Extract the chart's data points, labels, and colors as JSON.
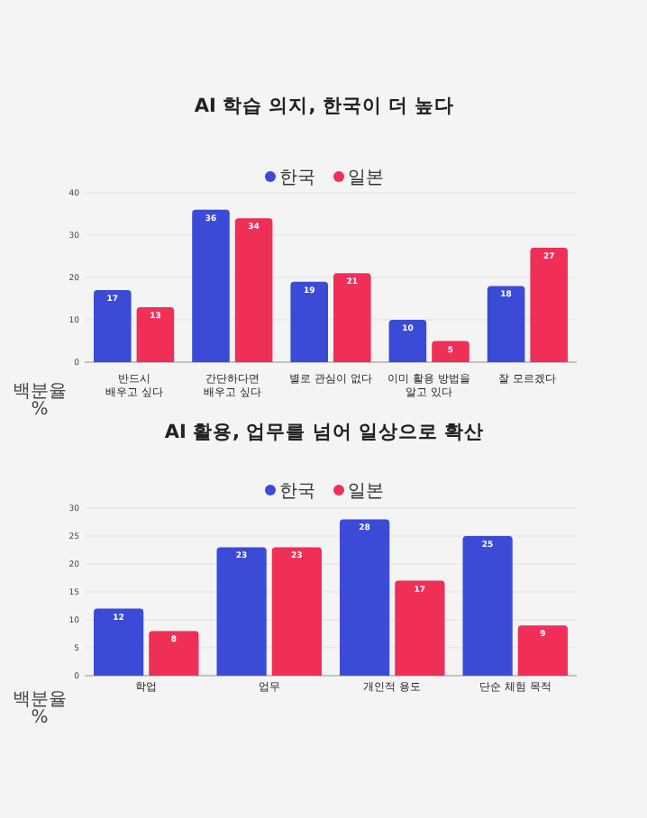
{
  "chart_data": [
    {
      "type": "bar",
      "title": "AI 학습 의지, 한국이 더 높다",
      "ylabel": "백분율 %",
      "categories": [
        "반드시\n배우고 싶다",
        "간단하다면\n배우고 싶다",
        "별로 관심이 없다",
        "이미 활용 방법을\n알고 있다",
        "잘 모르겠다"
      ],
      "series": [
        {
          "name": "한국",
          "color": "#3b4bd8",
          "values": [
            17,
            36,
            19,
            10,
            18
          ]
        },
        {
          "name": "일본",
          "color": "#ef2f58",
          "values": [
            13,
            34,
            21,
            5,
            27
          ]
        }
      ],
      "ylim": [
        0,
        40
      ],
      "yticks": [
        0,
        10,
        20,
        30,
        40
      ],
      "grid": "y",
      "legend": "top",
      "data_labels": true
    },
    {
      "type": "bar",
      "title": "AI 활용, 업무를 넘어 일상으로 확산",
      "ylabel": "백분율 %",
      "categories": [
        "학업",
        "업무",
        "개인적 용도",
        "단순 체험 목적"
      ],
      "series": [
        {
          "name": "한국",
          "color": "#3b4bd8",
          "values": [
            12,
            23,
            28,
            25
          ]
        },
        {
          "name": "일본",
          "color": "#ef2f58",
          "values": [
            8,
            23,
            17,
            9
          ]
        }
      ],
      "ylim": [
        0,
        30
      ],
      "yticks": [
        0,
        5,
        10,
        15,
        20,
        25,
        30
      ],
      "grid": "y",
      "legend": "top",
      "data_labels": true
    }
  ]
}
